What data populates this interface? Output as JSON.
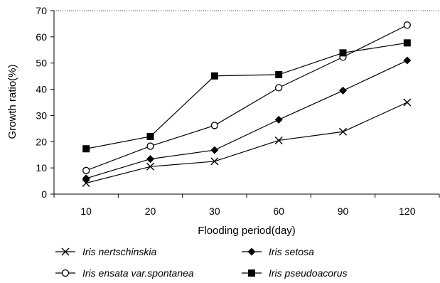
{
  "chart_data": {
    "type": "line",
    "title": "",
    "xlabel": "Flooding period(day)",
    "ylabel": "Growth ratio(%)",
    "categories": [
      "10",
      "20",
      "30",
      "60",
      "90",
      "120"
    ],
    "ylim": [
      0,
      70
    ],
    "yticks": [
      0,
      10,
      20,
      30,
      40,
      50,
      60,
      70
    ],
    "grid": false,
    "legend": "bottom",
    "series": [
      {
        "name": "Iris nertschinskia",
        "marker": "x",
        "color": "#000000",
        "values": [
          4.2,
          10.5,
          12.5,
          20.5,
          23.8,
          35.0
        ]
      },
      {
        "name": "Iris setosa",
        "marker": "diamond",
        "color": "#000000",
        "values": [
          6.0,
          13.4,
          16.8,
          28.4,
          39.5,
          51.0
        ]
      },
      {
        "name": "Iris ensata var.spontanea",
        "marker": "circle-open",
        "color": "#000000",
        "values": [
          9.0,
          18.3,
          26.2,
          40.6,
          52.3,
          64.5
        ]
      },
      {
        "name": "Iris pseudoacorus",
        "marker": "square",
        "color": "#000000",
        "values": [
          17.3,
          22.0,
          45.1,
          45.6,
          53.9,
          57.7
        ]
      }
    ]
  }
}
